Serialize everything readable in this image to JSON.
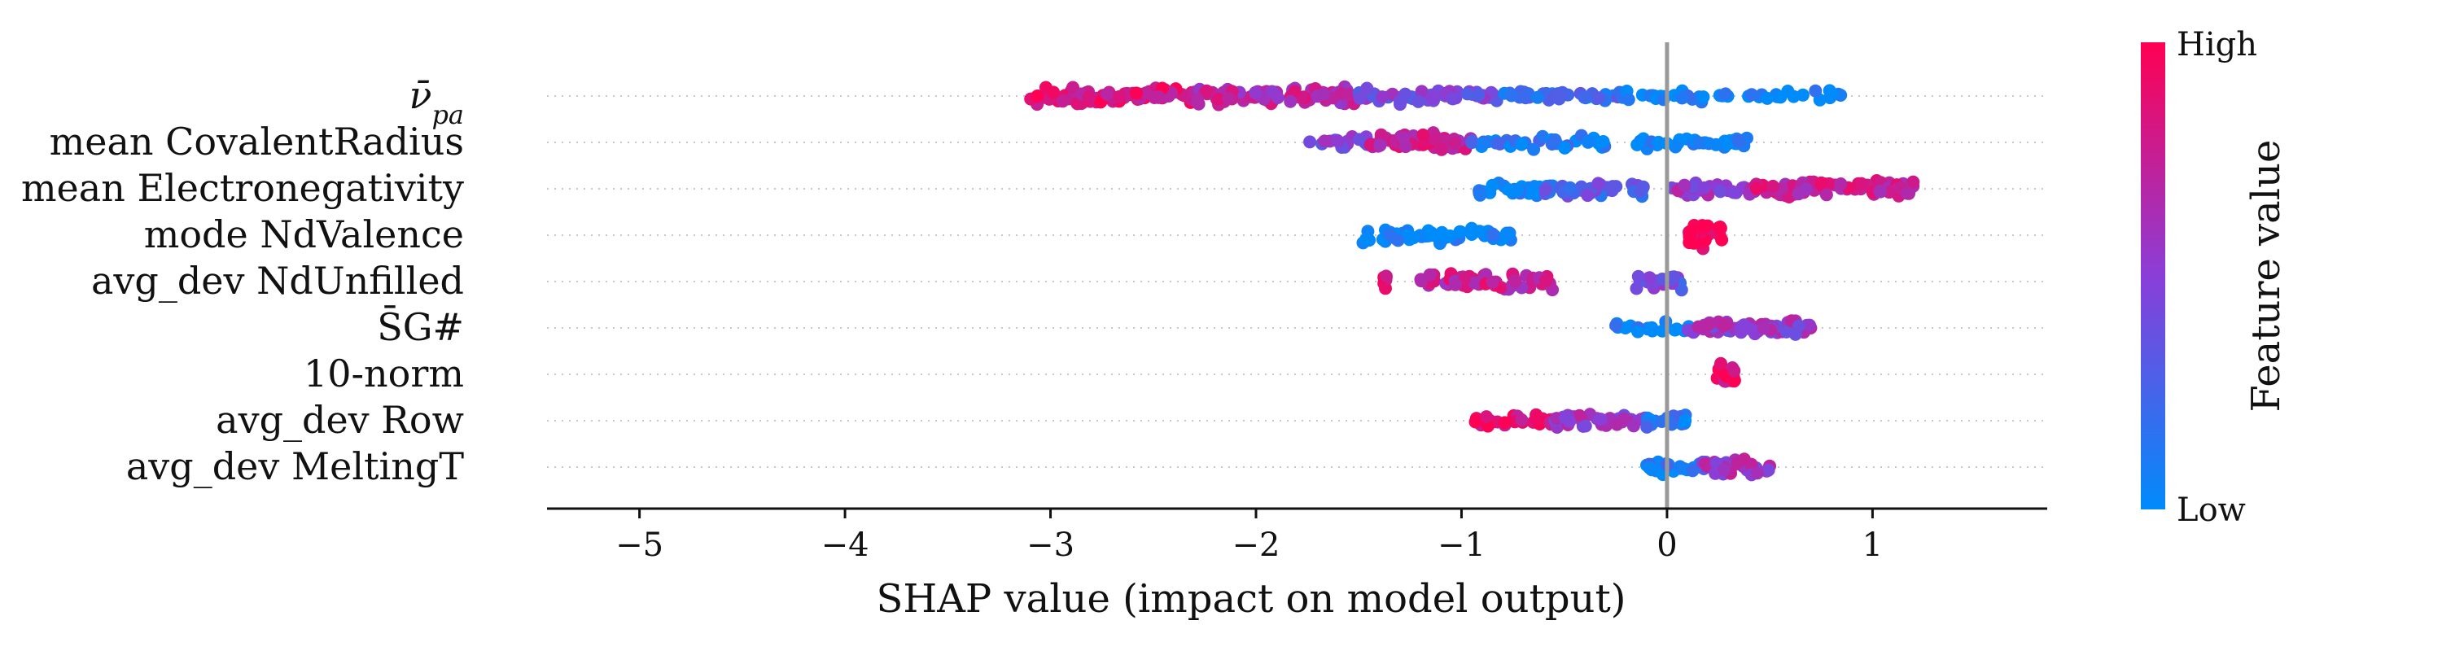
{
  "chart_data": {
    "type": "scatter",
    "subtype": "shap-beeswarm",
    "title": "",
    "xlabel": "SHAP value (impact on model output)",
    "xlim": [
      -5.45,
      1.85
    ],
    "xticks": [
      -5,
      -4,
      -3,
      -2,
      -1,
      0,
      1
    ],
    "xtick_labels": [
      "−5",
      "−4",
      "−3",
      "−2",
      "−1",
      "0",
      "1"
    ],
    "zero_line": 0,
    "grid": "dotted horizontal per feature row",
    "colors": {
      "low": "#008bfb",
      "high": "#ff0052",
      "mid": "#8a3ed8",
      "zero_line": "#999999"
    },
    "colorbar": {
      "label": "Feature value",
      "high_label": "High",
      "low_label": "Low",
      "placement": "right"
    },
    "features": [
      {
        "name": "ν̄",
        "subscript": "pa",
        "segments": [
          {
            "from": -3.1,
            "to": -2.3,
            "density": 0.5,
            "feature_value": 0.85
          },
          {
            "from": -2.3,
            "to": -1.5,
            "density": 0.55,
            "feature_value": 0.7
          },
          {
            "from": -1.5,
            "to": -0.8,
            "density": 0.35,
            "feature_value": 0.45
          },
          {
            "from": -0.8,
            "to": -0.2,
            "density": 0.25,
            "feature_value": 0.2
          },
          {
            "from": -0.2,
            "to": 0.85,
            "density": 0.18,
            "feature_value": 0.03
          }
        ]
      },
      {
        "name": "mean CovalentRadius",
        "segments": [
          {
            "from": -1.75,
            "to": -1.45,
            "density": 0.25,
            "feature_value": 0.45
          },
          {
            "from": -1.45,
            "to": -0.95,
            "density": 0.55,
            "feature_value": 0.75
          },
          {
            "from": -0.95,
            "to": -0.3,
            "density": 0.25,
            "feature_value": 0.1
          },
          {
            "from": -0.15,
            "to": 0.4,
            "density": 0.3,
            "feature_value": 0.02
          }
        ]
      },
      {
        "name": "mean Electronegativity",
        "segments": [
          {
            "from": -0.95,
            "to": -0.55,
            "density": 0.3,
            "feature_value": 0.05
          },
          {
            "from": -0.6,
            "to": -0.1,
            "density": 0.4,
            "feature_value": 0.3
          },
          {
            "from": 0.0,
            "to": 0.5,
            "density": 0.3,
            "feature_value": 0.55
          },
          {
            "from": 0.4,
            "to": 1.2,
            "density": 0.5,
            "feature_value": 0.75
          }
        ]
      },
      {
        "name": "mode NdValence",
        "segments": [
          {
            "from": -1.5,
            "to": -0.75,
            "density": 0.35,
            "feature_value": 0.0
          },
          {
            "from": 0.1,
            "to": 0.27,
            "density": 0.9,
            "feature_value": 1.0
          }
        ]
      },
      {
        "name": "avg_dev NdUnfilled",
        "segments": [
          {
            "from": -1.38,
            "to": -1.36,
            "density": 0.4,
            "feature_value": 0.9
          },
          {
            "from": -1.2,
            "to": -0.55,
            "density": 0.4,
            "feature_value": 0.75
          },
          {
            "from": -0.15,
            "to": 0.1,
            "density": 0.4,
            "feature_value": 0.4
          }
        ]
      },
      {
        "name": "S̄G#",
        "segments": [
          {
            "from": -0.25,
            "to": 0.15,
            "density": 0.2,
            "feature_value": 0.05
          },
          {
            "from": 0.1,
            "to": 0.7,
            "density": 0.45,
            "feature_value": 0.55
          }
        ]
      },
      {
        "name": "10-norm",
        "segments": [
          {
            "from": 0.23,
            "to": 0.33,
            "density": 0.9,
            "feature_value": 0.9
          }
        ]
      },
      {
        "name": "avg_dev Row",
        "segments": [
          {
            "from": -0.95,
            "to": -0.55,
            "density": 0.35,
            "feature_value": 0.9
          },
          {
            "from": -0.55,
            "to": -0.1,
            "density": 0.45,
            "feature_value": 0.55
          },
          {
            "from": -0.1,
            "to": 0.1,
            "density": 0.5,
            "feature_value": 0.1
          }
        ]
      },
      {
        "name": "avg_dev MeltingT",
        "segments": [
          {
            "from": -0.1,
            "to": 0.2,
            "density": 0.4,
            "feature_value": 0.1
          },
          {
            "from": 0.15,
            "to": 0.5,
            "density": 0.5,
            "feature_value": 0.6
          }
        ]
      }
    ]
  }
}
